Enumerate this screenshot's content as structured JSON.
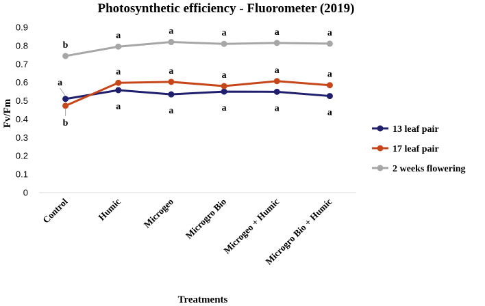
{
  "chart_data": {
    "type": "line",
    "title": "Photosynthetic efficiency - Fluorometer (2019)",
    "xlabel": "Treatments",
    "ylabel": "Fv/Fm",
    "ylim": [
      0,
      0.9
    ],
    "yticks": [
      "0",
      "0.1",
      "0.2",
      "0.3",
      "0.4",
      "0.5",
      "0.6",
      "0.7",
      "0.8",
      "0.9"
    ],
    "categories": [
      "Control",
      "Humic",
      "Microgeo",
      "Microgro Bio",
      "Microgeo + Humic",
      "Microgro Bio + Humic"
    ],
    "grid": false,
    "legend_position": "right",
    "series": [
      {
        "name": "13 leaf pair",
        "color": "#1f1f6e",
        "values": [
          0.51,
          0.558,
          0.535,
          0.55,
          0.549,
          0.526
        ],
        "labels": [
          "a",
          "a",
          "a",
          "a",
          "a",
          "a"
        ]
      },
      {
        "name": "17 leaf pair",
        "color": "#c6461a",
        "values": [
          0.473,
          0.598,
          0.603,
          0.58,
          0.607,
          0.585
        ],
        "labels": [
          "b",
          "a",
          "a",
          "a",
          "a",
          "a"
        ]
      },
      {
        "name": "2 weeks flowering",
        "color": "#a6a6a6",
        "values": [
          0.744,
          0.795,
          0.82,
          0.81,
          0.815,
          0.811
        ],
        "labels": [
          "b",
          "a",
          "a",
          "a",
          "a",
          "a"
        ]
      }
    ]
  }
}
